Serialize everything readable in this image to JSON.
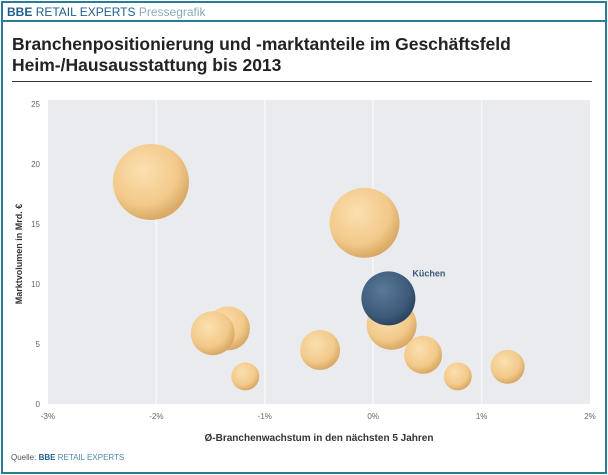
{
  "header": {
    "brand_bold": "BBE",
    "brand_name": "RETAIL EXPERTS",
    "brand_sub": "Pressegrafik"
  },
  "title_line1": "Branchenpositionierung und -marktanteile im Geschäftsfeld",
  "title_line2": "Heim-/Hausausstattung bis 2013",
  "source": {
    "label": "Quelle:",
    "bold": "BBE",
    "name": "RETAIL EXPERTS"
  },
  "colors": {
    "bubble": "#f2c98a",
    "highlight": "#3d5a7a",
    "plot_bg": "#e9ebef",
    "accent": "#2a7b95"
  },
  "chart_data": {
    "type": "scatter",
    "subtype": "bubble",
    "xlabel": "Ø-Branchenwachstum in den nächsten 5 Jahren",
    "ylabel": "Marktvolumen in Mrd. €",
    "xlim": [
      -3,
      2
    ],
    "ylim": [
      0,
      25
    ],
    "xticks": [
      "-3%",
      "-2%",
      "-1%",
      "0%",
      "1%",
      "2%"
    ],
    "yticks": [
      "0",
      "5",
      "10",
      "15",
      "20",
      "25"
    ],
    "grid": "vertical",
    "points": [
      {
        "x": -2.05,
        "y": 18.5,
        "size": 38
      },
      {
        "x": -0.08,
        "y": 15.1,
        "size": 35
      },
      {
        "x": 0.17,
        "y": 6.6,
        "size": 25
      },
      {
        "x": -1.34,
        "y": 6.3,
        "size": 22
      },
      {
        "x": -1.48,
        "y": 5.9,
        "size": 22
      },
      {
        "x": -0.49,
        "y": 4.5,
        "size": 20
      },
      {
        "x": 0.46,
        "y": 4.1,
        "size": 19
      },
      {
        "x": -1.18,
        "y": 2.3,
        "size": 14
      },
      {
        "x": 0.78,
        "y": 2.3,
        "size": 14
      },
      {
        "x": 1.24,
        "y": 3.1,
        "size": 17
      },
      {
        "x": 0.14,
        "y": 8.8,
        "size": 27,
        "label": "Küchen",
        "highlight": true
      }
    ]
  }
}
